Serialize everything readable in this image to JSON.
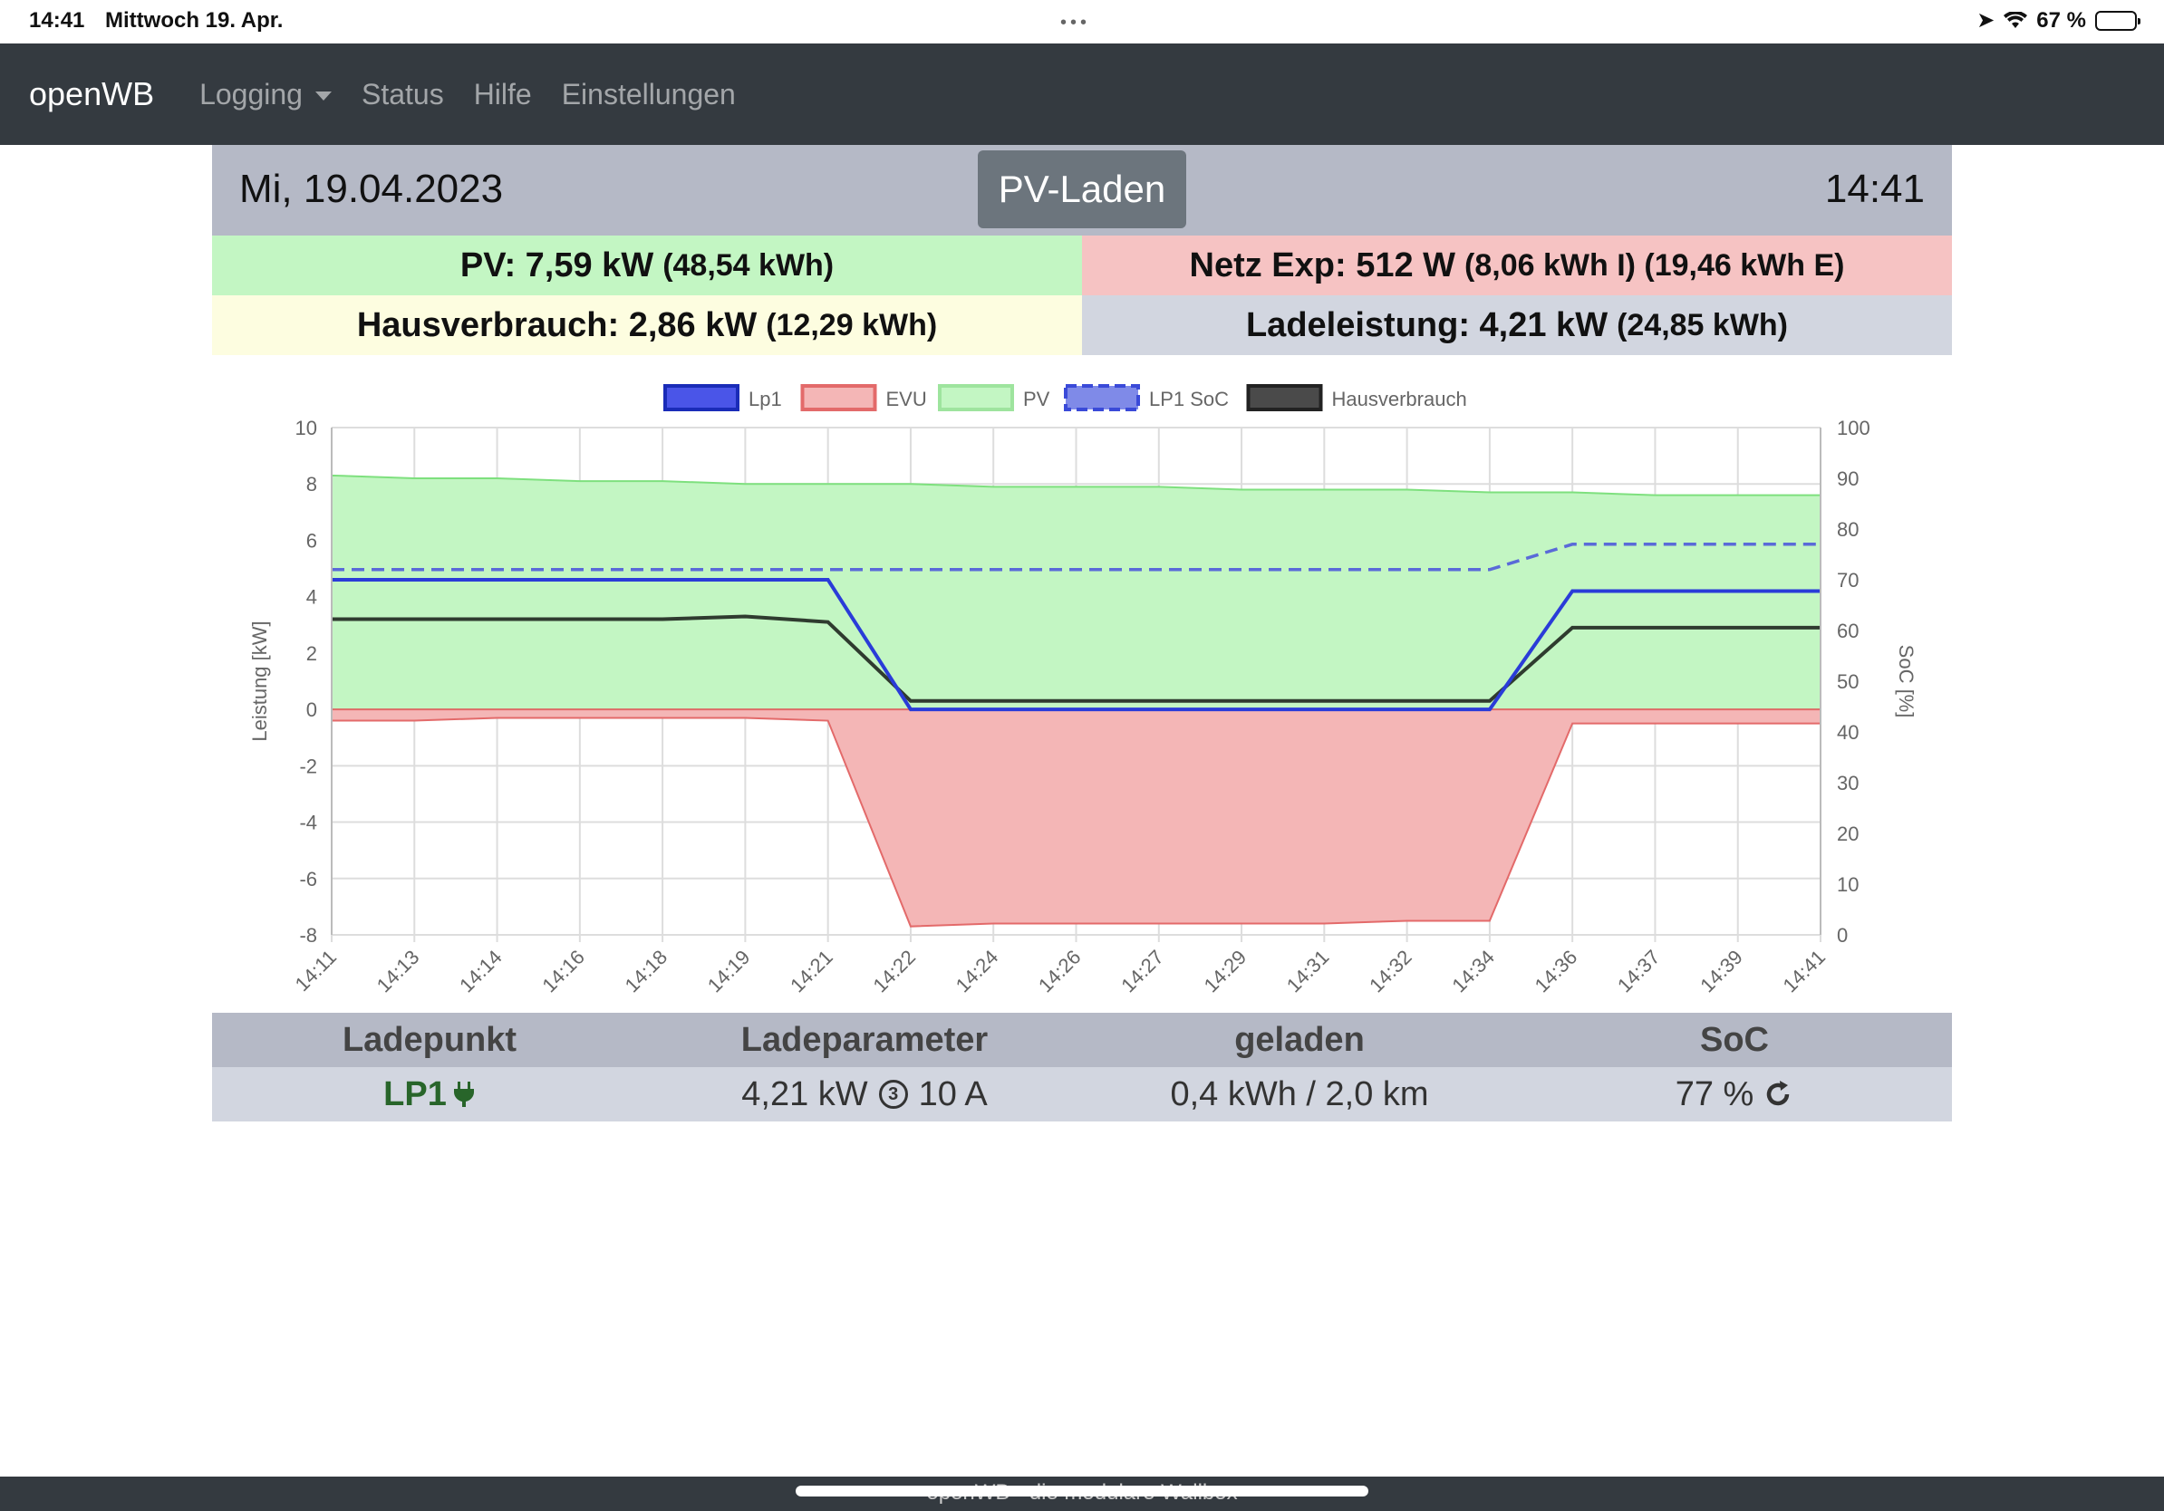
{
  "status_bar": {
    "time": "14:41",
    "date": "Mittwoch 19. Apr.",
    "battery": "67 %",
    "battery_level": 0.67
  },
  "navbar": {
    "brand": "openWB",
    "items": [
      "Logging",
      "Status",
      "Hilfe",
      "Einstellungen"
    ]
  },
  "header": {
    "date": "Mi, 19.04.2023",
    "mode": "PV-Laden",
    "time": "14:41"
  },
  "summary": {
    "pv_main": "PV: 7,59 kW",
    "pv_small": "(48,54 kWh)",
    "netz_main": "Netz Exp: 512 W",
    "netz_small": "(8,06 kWh I) (19,46 kWh E)",
    "haus_main": "Hausverbrauch: 2,86 kW",
    "haus_small": "(12,29 kWh)",
    "lade_main": "Ladeleistung: 4,21 kW",
    "lade_small": "(24,85 kWh)"
  },
  "chart_data": {
    "type": "line",
    "x": [
      "14:11",
      "14:13",
      "14:14",
      "14:16",
      "14:18",
      "14:19",
      "14:21",
      "14:22",
      "14:24",
      "14:26",
      "14:27",
      "14:29",
      "14:31",
      "14:32",
      "14:34",
      "14:36",
      "14:37",
      "14:39",
      "14:41"
    ],
    "ylabel": "Leistung [kW]",
    "y2label": "SoC [%]",
    "ylim": [
      -8,
      10
    ],
    "y2lim": [
      0,
      100
    ],
    "yticks": [
      "10",
      "8",
      "6",
      "4",
      "2",
      "0",
      "-2",
      "-4",
      "-6",
      "-8"
    ],
    "y2ticks": [
      "100",
      "90",
      "80",
      "70",
      "60",
      "50",
      "40",
      "30",
      "20",
      "10",
      "0"
    ],
    "legend_position": "top",
    "grid": true,
    "series": [
      {
        "name": "Lp1",
        "color": "#2a3cd8",
        "values": [
          4.6,
          4.6,
          4.6,
          4.6,
          4.6,
          4.6,
          4.6,
          0,
          0,
          0,
          0,
          0,
          0,
          0,
          0,
          4.2,
          4.2,
          4.2,
          4.2
        ]
      },
      {
        "name": "EVU",
        "color": "#e36a6a",
        "fill": "#f4b6b6",
        "values": [
          -0.4,
          -0.4,
          -0.3,
          -0.3,
          -0.3,
          -0.3,
          -0.4,
          -7.7,
          -7.6,
          -7.6,
          -7.6,
          -7.6,
          -7.6,
          -7.5,
          -7.5,
          -0.5,
          -0.5,
          -0.5,
          -0.5
        ]
      },
      {
        "name": "PV",
        "color": "#7ee07e",
        "fill": "#c3f6c3",
        "values": [
          8.3,
          8.2,
          8.2,
          8.1,
          8.1,
          8.0,
          8.0,
          8.0,
          7.9,
          7.9,
          7.9,
          7.8,
          7.8,
          7.8,
          7.7,
          7.7,
          7.6,
          7.6,
          7.6
        ]
      },
      {
        "name": "LP1 SoC",
        "color": "#5a6ad8",
        "dashed": true,
        "axis": "y2",
        "values": [
          72,
          72,
          72,
          72,
          72,
          72,
          72,
          72,
          72,
          72,
          72,
          72,
          72,
          72,
          72,
          77,
          77,
          77,
          77
        ]
      },
      {
        "name": "Hausverbrauch",
        "color": "#2f3b2f",
        "values": [
          3.2,
          3.2,
          3.2,
          3.2,
          3.2,
          3.3,
          3.1,
          0.3,
          0.3,
          0.3,
          0.3,
          0.3,
          0.3,
          0.3,
          0.3,
          2.9,
          2.9,
          2.9,
          2.9
        ]
      }
    ]
  },
  "table": {
    "headers": [
      "Ladepunkt",
      "Ladeparameter",
      "geladen",
      "SoC"
    ],
    "row": {
      "lp": "LP1",
      "power": "4,21 kW",
      "phases": "3",
      "current": "10 A",
      "charged": "0,4 kWh / 2,0 km",
      "soc": "77 %"
    }
  },
  "footer": "openWB - die modulare Wallbox"
}
